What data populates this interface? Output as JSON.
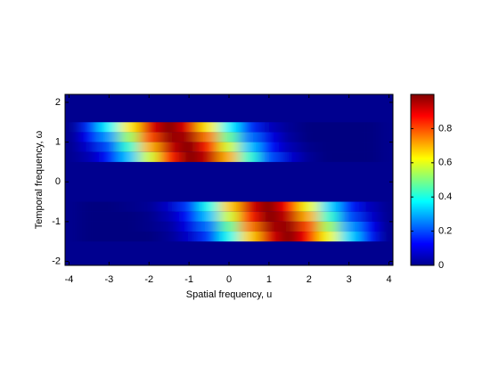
{
  "chart_data": {
    "type": "heatmap",
    "xlabel": "Spatial frequency, u",
    "ylabel": "Temporal frequency, ω",
    "x": [
      -3.5,
      -3,
      -2.5,
      -2,
      -1.5,
      -1,
      -0.5,
      0,
      0.5,
      1,
      1.5,
      2,
      2.5,
      3,
      3.5
    ],
    "y": [
      1.375,
      1.125,
      0.875,
      0.625,
      -0.625,
      -0.875,
      -1.125,
      -1.375
    ],
    "z": [
      [
        0.17,
        0.37,
        0.64,
        0.9,
        1,
        0.9,
        0.64,
        0.37,
        0.17,
        0.06,
        0.02,
        0,
        0,
        0,
        0
      ],
      [
        0.12,
        0.28,
        0.53,
        0.8,
        0.98,
        0.96,
        0.75,
        0.47,
        0.24,
        0.1,
        0.03,
        0,
        0,
        0,
        0
      ],
      [
        0.08,
        0.2,
        0.42,
        0.7,
        0.93,
        1,
        0.85,
        0.58,
        0.32,
        0.14,
        0.05,
        0.01,
        0,
        0,
        0
      ],
      [
        0.05,
        0.14,
        0.32,
        0.58,
        0.85,
        1,
        0.93,
        0.7,
        0.42,
        0.2,
        0.08,
        0.02,
        0,
        0,
        0
      ],
      [
        0,
        0,
        0.01,
        0.02,
        0.07,
        0.18,
        0.39,
        0.67,
        0.91,
        1,
        0.87,
        0.61,
        0.34,
        0.15,
        0.06
      ],
      [
        0,
        0,
        0,
        0.01,
        0.05,
        0.14,
        0.32,
        0.58,
        0.85,
        1,
        0.93,
        0.7,
        0.42,
        0.2,
        0.08
      ],
      [
        0,
        0,
        0,
        0.01,
        0.03,
        0.1,
        0.24,
        0.47,
        0.75,
        0.96,
        0.98,
        0.8,
        0.53,
        0.28,
        0.12
      ],
      [
        0,
        0,
        0,
        0,
        0.02,
        0.07,
        0.18,
        0.39,
        0.67,
        0.91,
        1,
        0.87,
        0.61,
        0.34,
        0.15
      ]
    ],
    "xlim": [
      -4.1,
      4.1
    ],
    "ylim": [
      -2.1,
      2.2
    ],
    "xticks": [
      -4,
      -3,
      -2,
      -1,
      0,
      1,
      2,
      3,
      4
    ],
    "yticks": [
      -2,
      -1,
      0,
      1,
      2
    ],
    "clim": [
      0,
      1
    ],
    "cticks": [
      0,
      0.2,
      0.4,
      0.6,
      0.8
    ],
    "colormap": "jet"
  }
}
